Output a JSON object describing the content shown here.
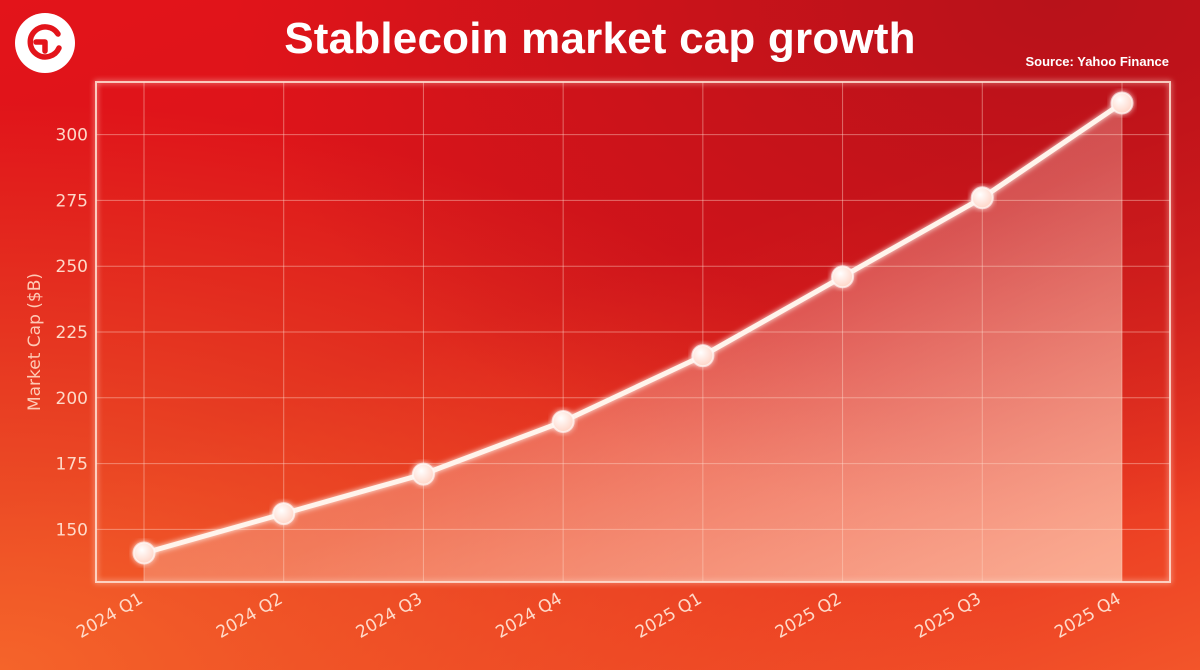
{
  "header": {
    "title": "Stablecoin market cap growth",
    "source": "Source: Yahoo Finance",
    "logo_icon": "refresh-arrow-logo-icon"
  },
  "chart_data": {
    "type": "line",
    "title": "Stablecoin market cap growth",
    "xlabel": "",
    "ylabel": "Market Cap ($B)",
    "categories": [
      "2024 Q1",
      "2024 Q2",
      "2024 Q3",
      "2024 Q4",
      "2025 Q1",
      "2025 Q2",
      "2025 Q3",
      "2025 Q4"
    ],
    "series": [
      {
        "values": [
          141,
          156,
          171,
          191,
          216,
          246,
          276,
          312
        ]
      }
    ],
    "ylim": [
      130,
      320
    ],
    "yticks": [
      150,
      175,
      200,
      225,
      250,
      275,
      300
    ],
    "grid": true,
    "area_fill": true,
    "colors": {
      "line": "#fff4ec",
      "marker": "#ffffff",
      "grid": "#ffd9cc"
    }
  }
}
